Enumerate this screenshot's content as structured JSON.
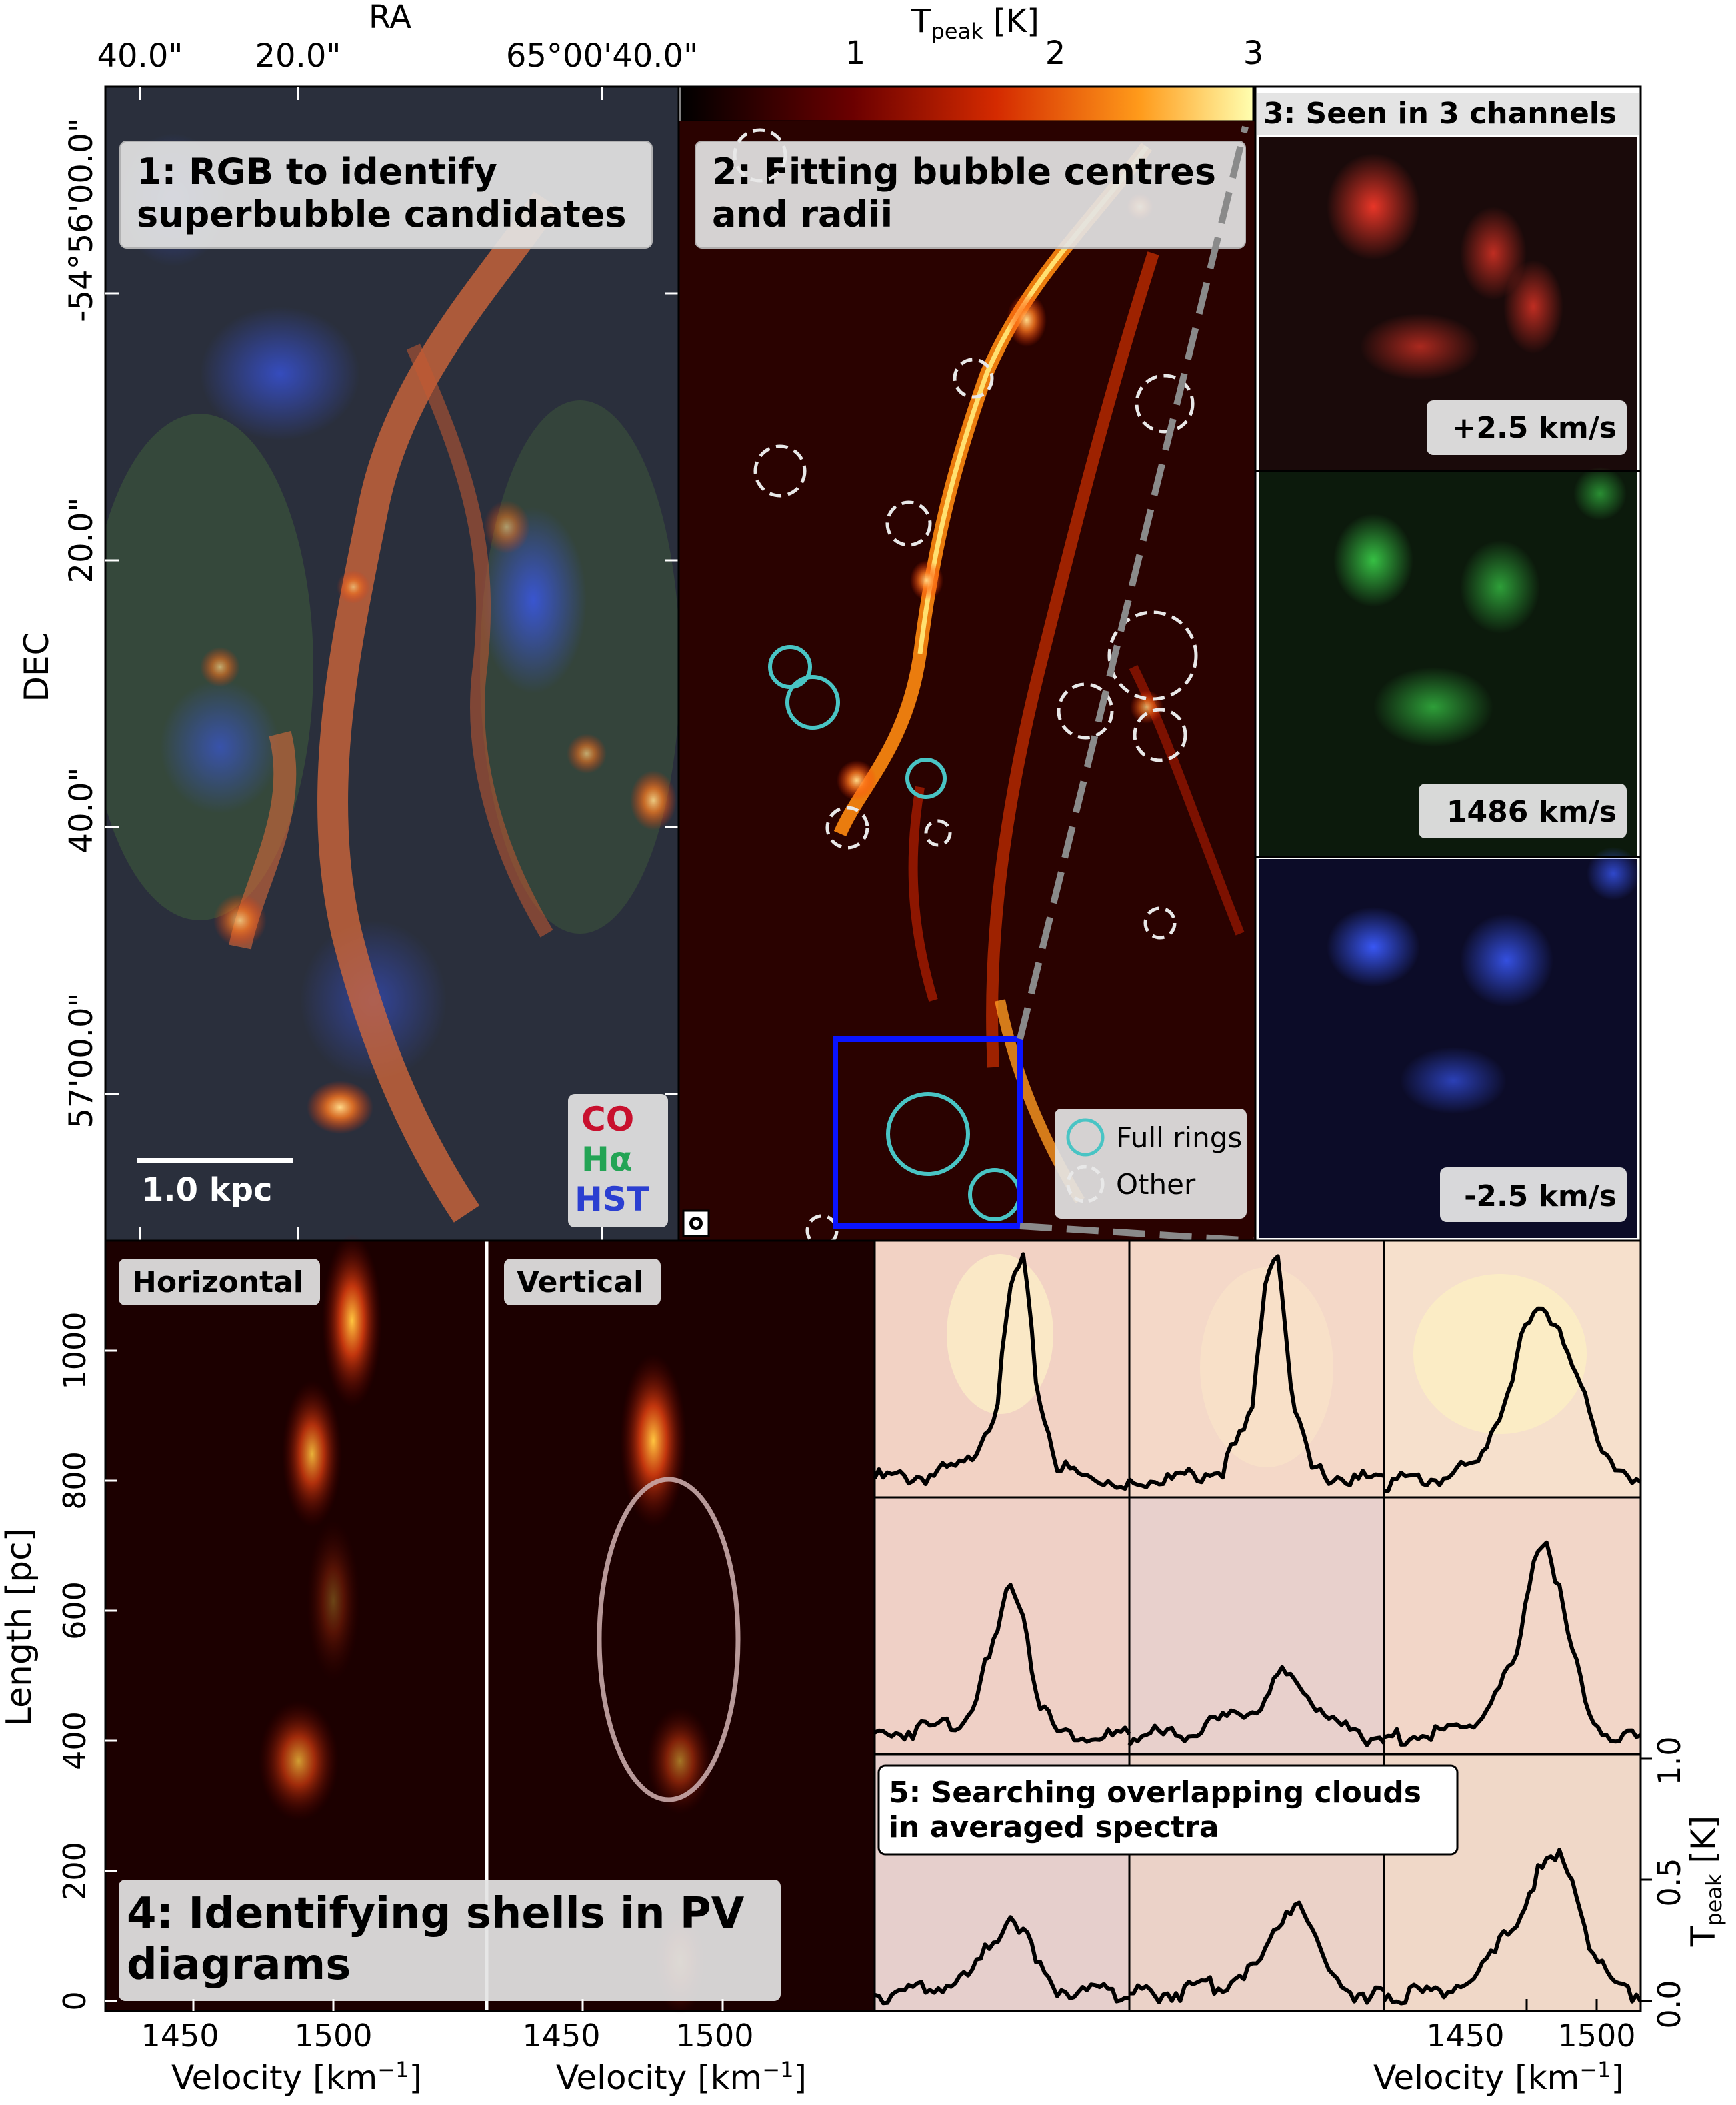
{
  "top_axis": {
    "ra_label": "RA",
    "ra_ticks": [
      "40.0\"",
      "20.0\"",
      "65°00'40.0\""
    ],
    "cbar_label_main": "T",
    "cbar_label_sub": "peak",
    "cbar_label_unit": " [K]",
    "cbar_ticks": [
      "1",
      "2",
      "3"
    ]
  },
  "dec_axis": {
    "label": "DEC",
    "ticks": [
      "-54°56'00.0\"",
      "20.0\"",
      "40.0\"",
      "57'00.0\""
    ]
  },
  "panel1": {
    "title_line1": "1: RGB to identify",
    "title_line2": "superbubble candidates",
    "scalebar": "1.0 kpc",
    "legend": [
      {
        "text": "CO",
        "color": "#c8102e"
      },
      {
        "text": "Hα",
        "color": "#23a455"
      },
      {
        "text": "HST",
        "color": "#2b3fd1"
      }
    ]
  },
  "panel2": {
    "title_line1": "2: Fitting bubble centres",
    "title_line2": "and radii",
    "legend_full": "Full rings",
    "legend_other": "Other"
  },
  "panel3": {
    "title": "3: Seen in 3 channels",
    "channels": [
      {
        "label": "+2.5 km/s",
        "color": "#d0243a"
      },
      {
        "label": "1486 km/s",
        "color": "#27a83a"
      },
      {
        "label": "-2.5 km/s",
        "color": "#2333e0"
      }
    ]
  },
  "panel4": {
    "horizontal": "Horizontal",
    "vertical": "Vertical",
    "title_line1": "4: Identifying shells in PV",
    "title_line2": "diagrams",
    "ylabel": "Length [pc]",
    "yticks": [
      "0",
      "200",
      "400",
      "600",
      "800",
      "1000"
    ],
    "xticks": [
      "1450",
      "1500"
    ],
    "xlabel": "Velocity [km"
  },
  "panel5": {
    "title_line1": "5: Searching overlapping clouds",
    "title_line2": "in averaged spectra",
    "ylabel": "T",
    "ylabel_sub": "peak",
    "ylabel_unit": " [K]",
    "yticks": [
      "0.0",
      "0.5",
      "1.0"
    ],
    "xticks": [
      "1450",
      "1500"
    ],
    "xlabel": "Velocity [km"
  },
  "chart_data": [
    {
      "type": "line",
      "x_unit": "km/s",
      "y_unit": "K",
      "ylim": [
        0,
        1.0
      ],
      "series": [
        {
          "velocities": [
            1415,
            1440,
            1460,
            1475,
            1482,
            1488,
            1495,
            1505,
            1520,
            1540
          ],
          "values": [
            0.05,
            0.06,
            0.1,
            0.35,
            0.85,
            0.95,
            0.4,
            0.1,
            0.05,
            0.04
          ]
        },
        {
          "velocities": [
            1415,
            1440,
            1460,
            1475,
            1482,
            1488,
            1495,
            1505,
            1520,
            1540
          ],
          "values": [
            0.04,
            0.05,
            0.08,
            0.3,
            0.9,
            1.0,
            0.35,
            0.08,
            0.05,
            0.04
          ]
        },
        {
          "velocities": [
            1415,
            1440,
            1460,
            1475,
            1482,
            1490,
            1500,
            1510,
            1520,
            1540
          ],
          "values": [
            0.03,
            0.05,
            0.1,
            0.4,
            0.65,
            0.72,
            0.7,
            0.45,
            0.15,
            0.04
          ]
        },
        {
          "velocities": [
            1415,
            1440,
            1460,
            1475,
            1482,
            1488,
            1495,
            1505,
            1520,
            1540
          ],
          "values": [
            0.05,
            0.08,
            0.12,
            0.45,
            0.7,
            0.55,
            0.2,
            0.06,
            0.05,
            0.04
          ]
        },
        {
          "velocities": [
            1415,
            1440,
            1460,
            1480,
            1490,
            1500,
            1510,
            1520,
            1530,
            1540
          ],
          "values": [
            0.04,
            0.06,
            0.1,
            0.18,
            0.3,
            0.25,
            0.15,
            0.08,
            0.05,
            0.04
          ]
        },
        {
          "velocities": [
            1415,
            1440,
            1460,
            1480,
            1488,
            1495,
            1505,
            1515,
            1525,
            1540
          ],
          "values": [
            0.04,
            0.05,
            0.1,
            0.35,
            0.8,
            0.85,
            0.45,
            0.12,
            0.05,
            0.04
          ]
        },
        {
          "velocities": [
            1415,
            1440,
            1460,
            1475,
            1482,
            1488,
            1495,
            1505,
            1520,
            1540
          ],
          "values": [
            0.04,
            0.06,
            0.1,
            0.28,
            0.38,
            0.3,
            0.15,
            0.06,
            0.05,
            0.04
          ]
        },
        {
          "velocities": [
            1415,
            1440,
            1460,
            1480,
            1490,
            1498,
            1505,
            1515,
            1525,
            1540
          ],
          "values": [
            0.04,
            0.05,
            0.08,
            0.18,
            0.36,
            0.45,
            0.3,
            0.1,
            0.05,
            0.04
          ]
        },
        {
          "velocities": [
            1415,
            1440,
            1460,
            1480,
            1490,
            1500,
            1508,
            1515,
            1525,
            1540
          ],
          "values": [
            0.04,
            0.05,
            0.1,
            0.35,
            0.55,
            0.6,
            0.5,
            0.25,
            0.08,
            0.04
          ]
        }
      ]
    }
  ]
}
